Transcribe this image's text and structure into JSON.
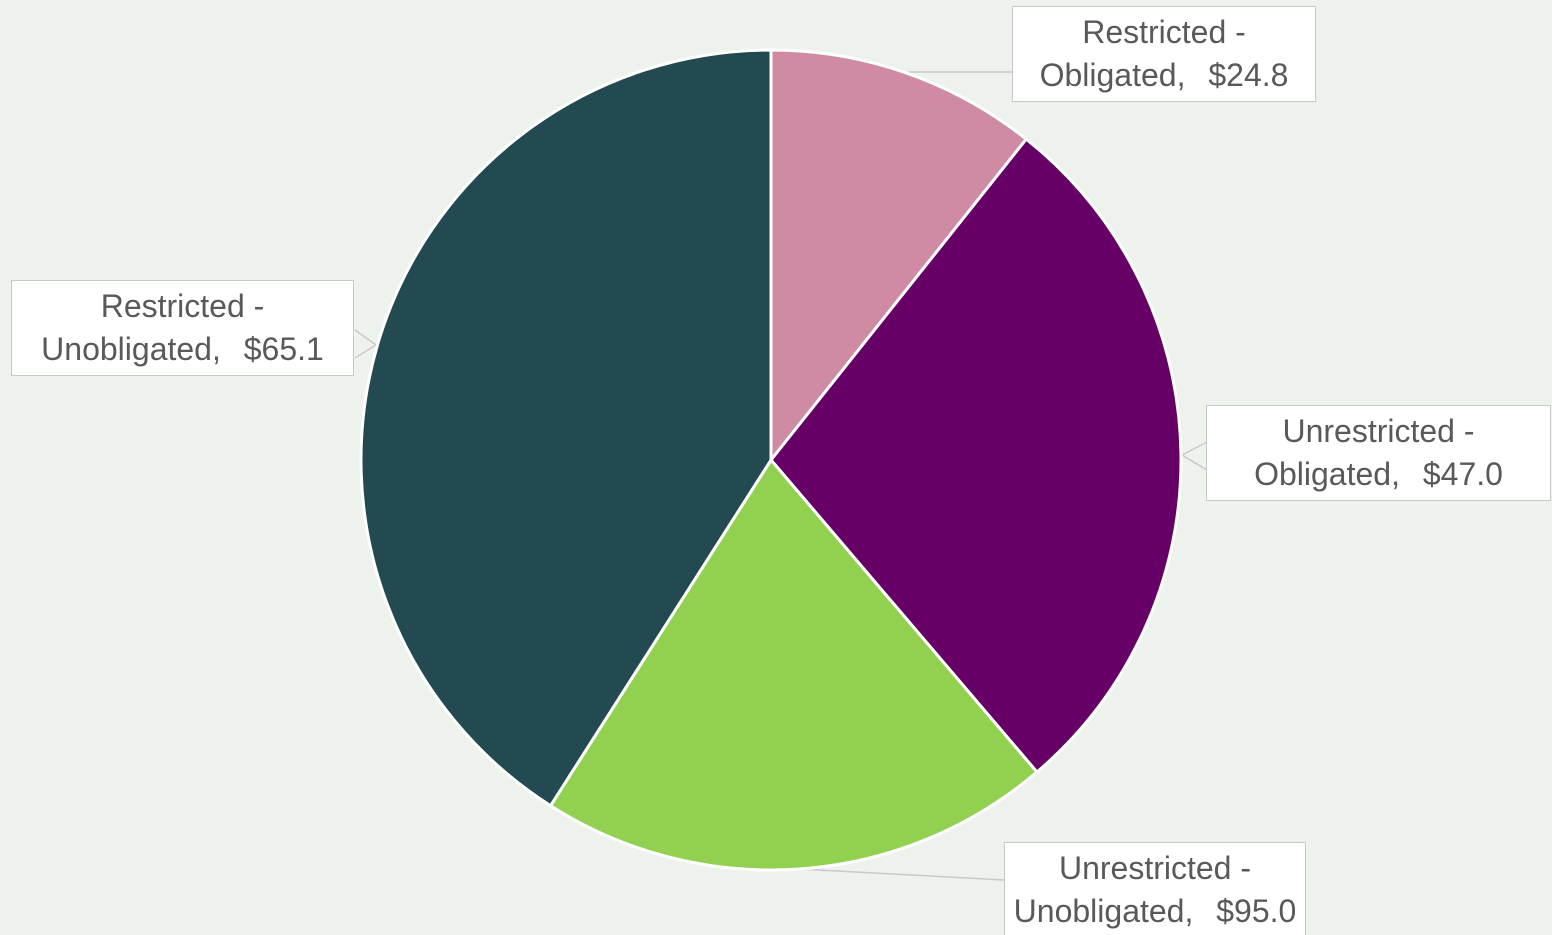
{
  "chart_data": {
    "type": "pie",
    "categories": [
      "Restricted - Obligated,",
      "Restricted - Unobligated,",
      "Unrestricted - Obligated,",
      "Unrestricted - Unobligated,"
    ],
    "values": [
      24.8,
      65.1,
      47.0,
      95.0
    ],
    "value_labels": [
      "$24.8",
      "$65.1",
      "$47.0",
      "$95.0"
    ],
    "colors": [
      "#cf8ba4",
      "#660066",
      "#92d050",
      "#224a50"
    ]
  }
}
